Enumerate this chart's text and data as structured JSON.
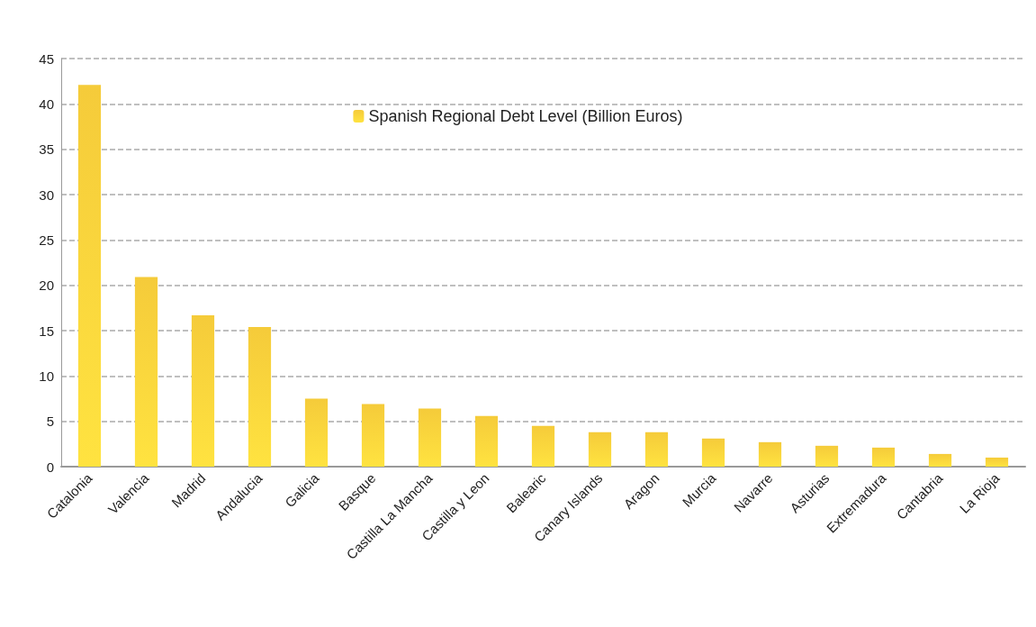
{
  "chart_data": {
    "type": "bar",
    "categories": [
      "Catalonia",
      "Valencia",
      "Madrid",
      "Andalucia",
      "Galicia",
      "Basque",
      "Castilla La Mancha",
      "Castilla y Leon",
      "Balearic",
      "Canary Islands",
      "Aragon",
      "Murcia",
      "Navarre",
      "Asturias",
      "Extremadura",
      "Cantabria",
      "La Rioja"
    ],
    "series": [
      {
        "name": "Spanish Regional Debt Level (Billion Euros)",
        "color": "#f5cb3a",
        "values": [
          42.1,
          20.9,
          16.7,
          15.4,
          7.5,
          6.9,
          6.4,
          5.6,
          4.5,
          3.8,
          3.8,
          3.1,
          2.7,
          2.3,
          2.1,
          1.4,
          1.0
        ]
      }
    ],
    "ylim": [
      0,
      45
    ],
    "yticks": [
      0,
      5,
      10,
      15,
      20,
      25,
      30,
      35,
      40,
      45
    ],
    "grid": "y",
    "legend": "top"
  }
}
